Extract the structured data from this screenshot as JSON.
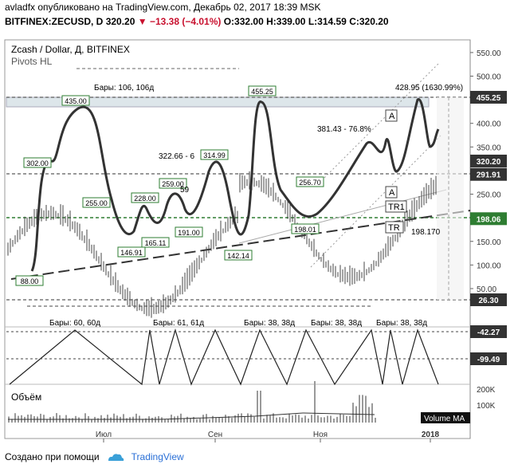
{
  "header": {
    "author": "avladfx",
    "published": "опубликовано на TradingView.com, Декабрь 02, 2017 18:39 MSK",
    "symbol": "BITFINEX:ZECUSD, D",
    "last": "320.20",
    "change": "−13.38 (−4.01%)",
    "open": "O:332.00",
    "high": "H:339.00",
    "low": "L:314.59",
    "close": "C:320.20"
  },
  "pane": {
    "title": "Zcash / Dollar, Д, BITFINEX",
    "indicator": "Pivots HL",
    "volume_label": "Объём",
    "volume_ma_label": "Volume MA"
  },
  "footer": {
    "created_with": "Создано при помощи",
    "brand": "TradingView",
    "brand_icon": "cloud-icon"
  },
  "colors": {
    "price": "#000000",
    "green_level": "#2e7d32",
    "pivot_box": "#2e7d32",
    "axis_dark": "#333333",
    "grid": "#e6e6e6"
  },
  "chart_data": {
    "type": "line",
    "y_ticks": [
      "550.00",
      "500.00",
      "450.00",
      "400.00",
      "350.00",
      "300.00",
      "250.00",
      "200.00",
      "150.00",
      "100.00",
      "50.00"
    ],
    "y_ticks_values": [
      550,
      500,
      450,
      400,
      350,
      300,
      250,
      200,
      150,
      100,
      50
    ],
    "x_ticks": [
      "Июл",
      "Сен",
      "Ноя",
      "2018"
    ],
    "price_tags": [
      {
        "label": "455.25",
        "value": 455.25,
        "style": "dark"
      },
      {
        "label": "320.20",
        "value": 320.2,
        "style": "dark"
      },
      {
        "label": "291.91",
        "value": 291.91,
        "style": "dark"
      },
      {
        "label": "198.06",
        "value": 198.06,
        "style": "green"
      },
      {
        "label": "26.30",
        "value": 26.3,
        "style": "dark"
      }
    ],
    "pivots": [
      {
        "label": "88.00",
        "value": 88.0
      },
      {
        "label": "302.00",
        "value": 302.0
      },
      {
        "label": "435.00",
        "value": 435.0
      },
      {
        "label": "255.00",
        "value": 255.0
      },
      {
        "label": "146.91",
        "value": 146.91
      },
      {
        "label": "228.00",
        "value": 228.0
      },
      {
        "label": "165.11",
        "value": 165.11
      },
      {
        "label": "259.00",
        "value": 259.0
      },
      {
        "label": "191.00",
        "value": 191.0
      },
      {
        "label": "314.99",
        "value": 314.99
      },
      {
        "label": "142.14",
        "value": 142.14
      },
      {
        "label": "455.25",
        "value": 455.25
      },
      {
        "label": "256.70",
        "value": 256.7
      },
      {
        "label": "198.01",
        "value": 198.01
      }
    ],
    "annotations": [
      {
        "text": "Бары: 106, 106д"
      },
      {
        "text": "322.66 - 6"
      },
      {
        "text": "59"
      },
      {
        "text": "381.43 - 76.8%"
      },
      {
        "text": "428.95 (1630.99%)"
      },
      {
        "text": "198.170"
      },
      {
        "text": "A"
      },
      {
        "text": "A"
      },
      {
        "text": "TR1"
      },
      {
        "text": "TR"
      }
    ],
    "cycle_labels": [
      "Бары: 60, 60д",
      "Бары: 61, 61д",
      "Бары: 38, 38д",
      "Бары: 38, 38д",
      "Бары: 38, 38д"
    ],
    "oscillator_tags": [
      {
        "label": "-42.27"
      },
      {
        "label": "-99.49"
      }
    ],
    "volume_ticks": [
      {
        "label": "200K"
      },
      {
        "label": "100K"
      }
    ]
  }
}
